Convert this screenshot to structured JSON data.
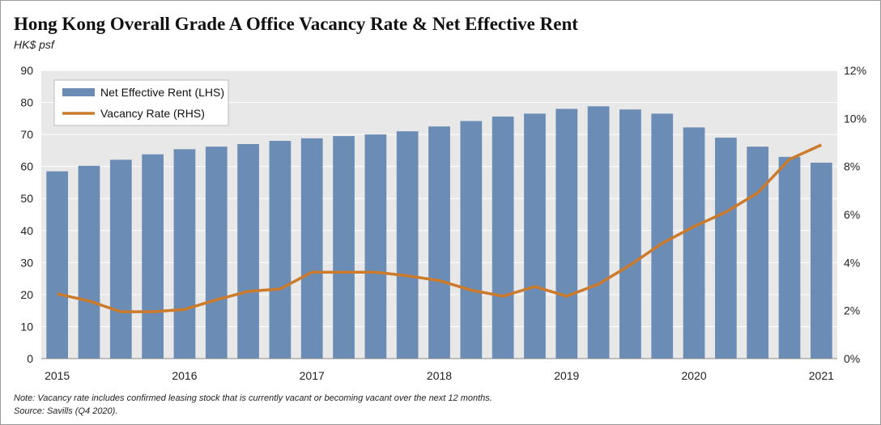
{
  "title": "Hong Kong Overall Grade A Office Vacancy Rate & Net Effective Rent",
  "subtitle": "HK$ psf",
  "note": "Note: Vacancy rate includes confirmed leasing stock that is currently vacant or becoming vacant over the next 12 months.",
  "source": "Source: Savills (Q4 2020).",
  "colors": {
    "bars": "#6b8db5",
    "line": "#cc7a2b",
    "plot_bg": "#e8e8e8"
  },
  "chart_data": {
    "type": "bar",
    "legend_position": "top-left",
    "grid": true,
    "x_tick_labels": [
      "2015",
      "2016",
      "2017",
      "2018",
      "2019",
      "2020",
      "2021"
    ],
    "y_left": {
      "range": [
        0,
        90
      ],
      "ticks": [
        "0",
        "10",
        "20",
        "30",
        "40",
        "50",
        "60",
        "70",
        "80",
        "90"
      ]
    },
    "y_right": {
      "range": [
        0,
        12
      ],
      "ticks": [
        "0%",
        "2%",
        "4%",
        "6%",
        "8%",
        "10%",
        "12%"
      ]
    },
    "series": [
      {
        "name": "Net Effective Rent (LHS)",
        "type": "bar",
        "axis": "left",
        "values": [
          58.5,
          60.2,
          62.1,
          63.8,
          65.4,
          66.2,
          67.0,
          68.0,
          68.8,
          69.5,
          70.0,
          71.0,
          72.5,
          74.2,
          75.6,
          76.5,
          78.0,
          78.8,
          77.8,
          76.5,
          72.2,
          69.0,
          66.2,
          63.0,
          61.2
        ]
      },
      {
        "name": "Vacancy Rate (RHS)",
        "type": "line",
        "axis": "right",
        "unit": "%",
        "values": [
          2.7,
          2.4,
          1.95,
          1.95,
          2.05,
          2.45,
          2.8,
          2.9,
          3.6,
          3.6,
          3.6,
          3.45,
          3.25,
          2.85,
          2.6,
          3.0,
          2.6,
          3.1,
          3.9,
          4.8,
          5.5,
          6.1,
          6.9,
          8.3,
          8.9
        ]
      }
    ]
  }
}
